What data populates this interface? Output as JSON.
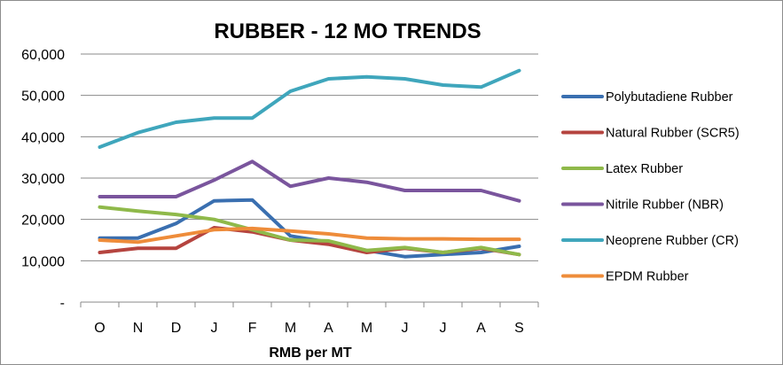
{
  "chart_data": {
    "type": "line",
    "title": "RUBBER - 12 MO TRENDS",
    "xlabel": "RMB per MT",
    "ylabel": "",
    "categories": [
      "O",
      "N",
      "D",
      "J",
      "F",
      "M",
      "A",
      "M",
      "J",
      "J",
      "A",
      "S"
    ],
    "ylim": [
      0,
      60000
    ],
    "y_ticks": [
      0,
      10000,
      20000,
      30000,
      40000,
      50000,
      60000
    ],
    "y_tick_labels": [
      "-",
      "10,000",
      "20,000",
      "30,000",
      "40,000",
      "50,000",
      "60,000"
    ],
    "grid": "horizontal",
    "legend_position": "right",
    "series": [
      {
        "name": "Polybutadiene  Rubber",
        "color": "#3a6fb0",
        "values": [
          15500,
          15500,
          19000,
          24500,
          24700,
          16000,
          14500,
          12500,
          11000,
          11500,
          12000,
          13500
        ]
      },
      {
        "name": "Natural Rubber (SCR5)",
        "color": "#b5443f",
        "values": [
          12000,
          13000,
          13000,
          18000,
          17000,
          15000,
          14000,
          12000,
          13000,
          12000,
          13000,
          11500
        ]
      },
      {
        "name": "Latex Rubber",
        "color": "#8fb94a",
        "values": [
          23000,
          22000,
          21200,
          20000,
          17500,
          15000,
          14800,
          12500,
          13200,
          12000,
          13200,
          11500
        ]
      },
      {
        "name": "Nitrile Rubber  (NBR)",
        "color": "#7a559d",
        "values": [
          25500,
          25500,
          25500,
          29500,
          34000,
          28000,
          30000,
          29000,
          27000,
          27000,
          27000,
          24500
        ]
      },
      {
        "name": "Neoprene Rubber (CR)",
        "color": "#3fa6bc",
        "values": [
          37500,
          41000,
          43500,
          44500,
          44500,
          51000,
          54000,
          54500,
          54000,
          52500,
          52000,
          56000
        ]
      },
      {
        "name": "EPDM Rubber",
        "color": "#ee8c3a",
        "values": [
          15000,
          14500,
          16000,
          17500,
          17800,
          17200,
          16500,
          15500,
          15300,
          15300,
          15200,
          15200
        ]
      }
    ]
  }
}
